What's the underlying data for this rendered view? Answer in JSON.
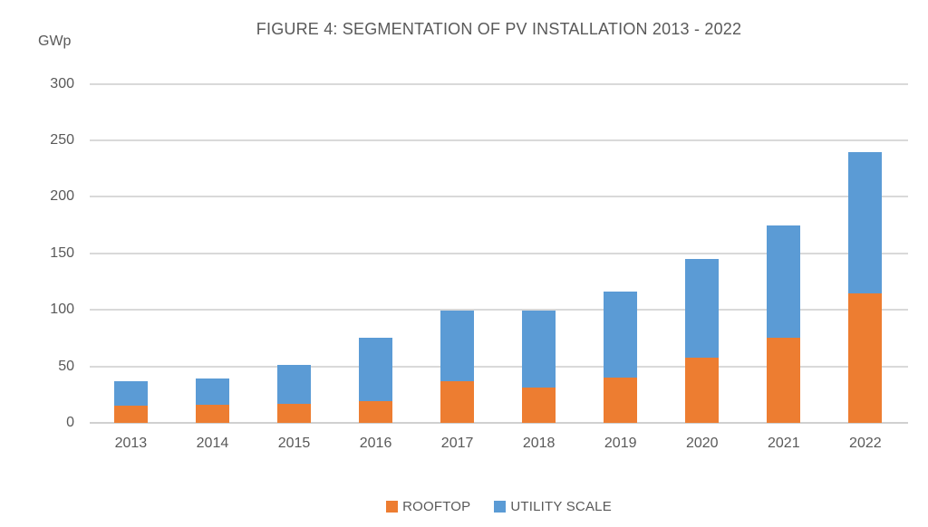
{
  "chart_data": {
    "type": "bar",
    "stacked": true,
    "title": "FIGURE 4: SEGMENTATION OF PV INSTALLATION 2013 - 2022",
    "unit_label": "GWp",
    "categories": [
      "2013",
      "2014",
      "2015",
      "2016",
      "2017",
      "2018",
      "2019",
      "2020",
      "2021",
      "2022"
    ],
    "series": [
      {
        "name": "ROOFTOP",
        "color": "#ED7D31",
        "values": [
          15,
          16,
          17,
          19,
          37,
          31,
          40,
          58,
          75,
          115
        ]
      },
      {
        "name": "UTILITY SCALE",
        "color": "#5B9BD5",
        "values": [
          22,
          23,
          34,
          56,
          62,
          68,
          76,
          87,
          100,
          125
        ]
      }
    ],
    "totals": [
      37,
      39,
      51,
      75,
      99,
      99,
      116,
      145,
      175,
      240
    ],
    "ylim": [
      0,
      300
    ],
    "yticks": [
      0,
      50,
      100,
      150,
      200,
      250,
      300
    ],
    "grid": true,
    "legend_position": "bottom"
  },
  "colors": {
    "text": "#595959",
    "gridline": "#D9D9D9",
    "axis_line": "#D0D0D0",
    "background": "#FFFFFF",
    "rooftop": "#ED7D31",
    "utility_scale": "#5B9BD5"
  }
}
